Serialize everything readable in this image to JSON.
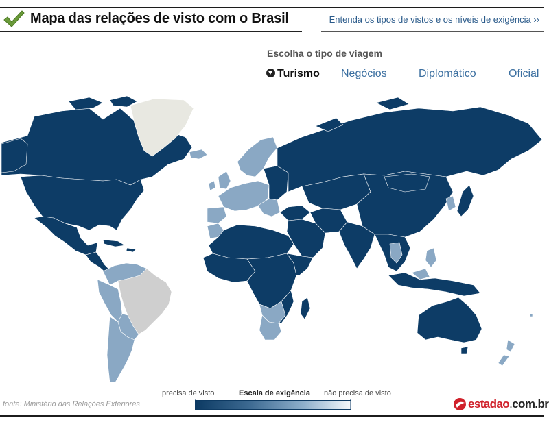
{
  "header": {
    "title": "Mapa das relações de visto com o Brasil",
    "explain_link": "Entenda os tipos de vistos e os níveis de exigência ››",
    "icon": "checkmark-icon"
  },
  "travel": {
    "heading": "Escolha o tipo de viagem",
    "tabs": [
      {
        "label": "Turismo",
        "active": true
      },
      {
        "label": "Negócios",
        "active": false
      },
      {
        "label": "Diplomático",
        "active": false
      },
      {
        "label": "Oficial",
        "active": false
      }
    ]
  },
  "colors": {
    "requires_visa": "#0d3c66",
    "intermediate": "#8aa8c4",
    "no_visa": "#f2f6f9",
    "brazil": "#cfcfcf",
    "greenland": "#e8e8e1",
    "brand_red": "#d0202a"
  },
  "legend": {
    "left": "precisa de visto",
    "title": "Escala de exigência",
    "right": "não precisa de visto"
  },
  "source": "fonte: Ministério das Relações Exteriores",
  "logo": {
    "brand": "estadao",
    "dot": ".",
    "tld": "com.br"
  }
}
